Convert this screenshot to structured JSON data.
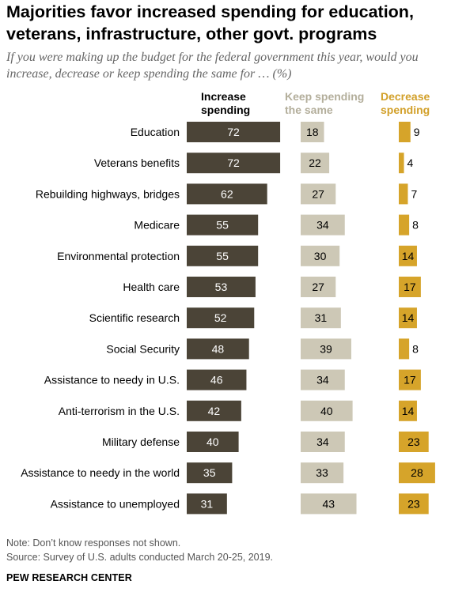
{
  "title": "Majorities favor increased spending for education, veterans, infrastructure, other govt. programs",
  "subtitle": "If you were making up the budget for the federal government this year, would you increase, decrease or keep spending the same for … (%)",
  "note": "Note: Don’t know responses not shown.",
  "source": "Source: Survey of U.S. adults conducted March 20-25, 2019.",
  "brand": "PEW RESEARCH CENTER",
  "colors": {
    "increase": "#4b4437",
    "keep": "#cdc8b6",
    "decrease": "#d6a42a",
    "keep_header": "#b3ae9b",
    "decrease_header": "#d2a02a"
  },
  "chart_data": {
    "type": "bar",
    "orientation": "horizontal",
    "categories": [
      "Education",
      "Veterans benefits",
      "Rebuilding highways, bridges",
      "Medicare",
      "Environmental protection",
      "Health care",
      "Scientific research",
      "Social Security",
      "Assistance to needy in U.S.",
      "Anti-terrorism in the U.S.",
      "Military defense",
      "Assistance to needy in the world",
      "Assistance to unemployed"
    ],
    "series": [
      {
        "name": "Increase spending",
        "values": [
          72,
          72,
          62,
          55,
          55,
          53,
          52,
          48,
          46,
          42,
          40,
          35,
          31
        ]
      },
      {
        "name": "Keep spending the same",
        "values": [
          18,
          22,
          27,
          34,
          30,
          27,
          31,
          39,
          34,
          40,
          34,
          33,
          43
        ]
      },
      {
        "name": "Decrease spending",
        "values": [
          9,
          4,
          7,
          8,
          14,
          17,
          14,
          8,
          17,
          14,
          23,
          28,
          23
        ]
      }
    ]
  }
}
